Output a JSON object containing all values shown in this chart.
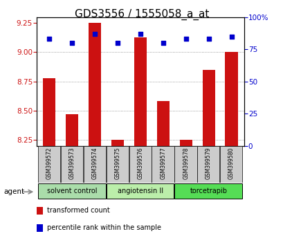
{
  "title": "GDS3556 / 1555058_a_at",
  "samples": [
    "GSM399572",
    "GSM399573",
    "GSM399574",
    "GSM399575",
    "GSM399576",
    "GSM399577",
    "GSM399578",
    "GSM399579",
    "GSM399580"
  ],
  "bar_values": [
    8.78,
    8.47,
    9.25,
    8.25,
    9.13,
    8.58,
    8.25,
    8.85,
    9.0
  ],
  "percentile_values": [
    83,
    80,
    87,
    80,
    87,
    80,
    83,
    83,
    85
  ],
  "ylim_left": [
    8.2,
    9.3
  ],
  "ylim_right": [
    0,
    100
  ],
  "yticks_left": [
    8.25,
    8.5,
    8.75,
    9.0,
    9.25
  ],
  "yticks_right": [
    0,
    25,
    50,
    75,
    100
  ],
  "hlines": [
    8.75,
    9.0,
    8.5,
    8.25
  ],
  "bar_color": "#cc1111",
  "dot_color": "#0000cc",
  "bar_width": 0.55,
  "groups": [
    {
      "label": "solvent control",
      "start": 0,
      "end": 3,
      "color": "#aaddaa"
    },
    {
      "label": "angiotensin II",
      "start": 3,
      "end": 6,
      "color": "#bbeeaa"
    },
    {
      "label": "torcetrapib",
      "start": 6,
      "end": 9,
      "color": "#55dd55"
    }
  ],
  "agent_label": "agent",
  "legend_bar_label": "transformed count",
  "legend_dot_label": "percentile rank within the sample",
  "bg_color": "#ffffff",
  "tick_color_left": "#cc1111",
  "tick_color_right": "#0000cc",
  "title_fontsize": 11,
  "tick_fontsize": 7.5,
  "sample_fontsize": 5.5,
  "group_fontsize": 7,
  "legend_fontsize": 7
}
